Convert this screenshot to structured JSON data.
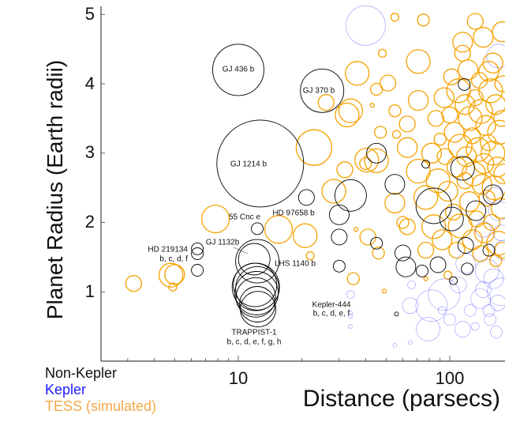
{
  "chart_data": {
    "type": "scatter",
    "xlabel": "Distance (parsecs)",
    "ylabel": "Planet Radius (Earth radii)",
    "xscale": "log",
    "xlim": [
      2.24,
      182
    ],
    "ylim": [
      0,
      5
    ],
    "x_ticks": [
      "10",
      "100"
    ],
    "y_ticks": [
      "1",
      "2",
      "3",
      "4",
      "5"
    ],
    "grid": false,
    "legend_placement": "bottom-left",
    "marker": "open circle, size varies",
    "series": [
      {
        "name": "Non-Kepler",
        "color": "#000000",
        "points": [
          [
            10,
            4.2,
            13
          ],
          [
            24.9,
            3.9,
            11
          ],
          [
            12.7,
            2.85,
            22
          ],
          [
            12.3,
            1.91,
            3
          ],
          [
            21,
            2.36,
            4
          ],
          [
            6.4,
            1.62,
            3
          ],
          [
            6.4,
            1.55,
            3
          ],
          [
            6.4,
            1.31,
            3
          ],
          [
            11.9,
            1.47,
            8
          ],
          [
            12.3,
            1.44,
            11
          ],
          [
            12.0,
            1.1,
            11
          ],
          [
            12.1,
            1.07,
            12
          ],
          [
            12.3,
            1.05,
            11
          ],
          [
            12.2,
            0.98,
            11
          ],
          [
            12.1,
            0.92,
            10
          ],
          [
            12.3,
            0.82,
            9
          ],
          [
            12.4,
            0.75,
            9
          ],
          [
            34,
            2.39,
            8
          ],
          [
            30,
            2.11,
            5
          ],
          [
            30,
            1.79,
            4
          ],
          [
            30,
            1.37,
            3
          ],
          [
            45,
            3.0,
            5
          ],
          [
            55,
            2.55,
            5
          ],
          [
            45,
            1.7,
            3
          ],
          [
            60,
            1.56,
            4
          ],
          [
            62,
            1.36,
            5
          ],
          [
            74,
            1.3,
            3
          ],
          [
            88,
            1.39,
            4
          ],
          [
            84,
            2.24,
            9
          ],
          [
            102,
            2.05,
            6
          ],
          [
            133,
            2.17,
            5
          ],
          [
            119,
            1.67,
            4
          ],
          [
            121,
            1.33,
            3
          ],
          [
            104,
            1.16,
            2
          ],
          [
            153,
            1.6,
            3
          ],
          [
            117,
            3.99,
            3
          ],
          [
            77,
            2.84,
            2
          ],
          [
            56,
            0.68,
            1
          ],
          [
            115,
            2.78,
            6
          ],
          [
            160,
            2.4,
            5
          ]
        ]
      },
      {
        "name": "Kepler",
        "color": "#3333ee",
        "points": [
          [
            40,
            4.84,
            10
          ],
          [
            34,
            0.96,
            2
          ],
          [
            33.9,
            0.7,
            1
          ],
          [
            33.9,
            0.65,
            1
          ],
          [
            33.9,
            0.5,
            1
          ],
          [
            55,
            0.23,
            1
          ],
          [
            65,
            0.8,
            4
          ],
          [
            82,
            0.8,
            8
          ],
          [
            94,
            0.96,
            8
          ],
          [
            79,
            0.46,
            6
          ],
          [
            115,
            0.46,
            4
          ],
          [
            132,
            0.5,
            2
          ],
          [
            144,
            1.03,
            4
          ],
          [
            161,
            1.19,
            5
          ],
          [
            169,
            0.84,
            4
          ],
          [
            166,
            0.42,
            3
          ],
          [
            170,
            2.17,
            5
          ],
          [
            153,
            0.73,
            3
          ],
          [
            180,
            1.6,
            5
          ],
          [
            66,
            1.1,
            2
          ],
          [
            92,
            0.73,
            2
          ],
          [
            125,
            0.73,
            3
          ],
          [
            119,
            1.41,
            5
          ],
          [
            163,
            2.39,
            4
          ],
          [
            144,
            1.9,
            4
          ],
          [
            65,
            0.27,
            1
          ],
          [
            150,
            1.3,
            6
          ],
          [
            175,
            1.0,
            7
          ],
          [
            140,
            0.9,
            5
          ],
          [
            110,
            1.1,
            4
          ],
          [
            170,
            4.4,
            6
          ],
          [
            175,
            1.85,
            4
          ],
          [
            155,
            0.6,
            3
          ],
          [
            100,
            0.6,
            3
          ]
        ]
      },
      {
        "name": "TESS (simulated)",
        "color": "#f5a200",
        "points": [
          [
            3.2,
            1.12,
            4
          ],
          [
            5.0,
            1.25,
            5
          ],
          [
            4.9,
            1.07,
            2
          ],
          [
            7.8,
            2.05,
            7
          ],
          [
            4.8,
            1.24,
            6
          ],
          [
            15.5,
            1.9,
            7
          ],
          [
            20.7,
            1.81,
            6
          ],
          [
            21.9,
            1.52,
            2
          ],
          [
            22.8,
            3.08,
            9
          ],
          [
            26,
            3.73,
            4
          ],
          [
            32.7,
            3.55,
            6
          ],
          [
            36.5,
            4.15,
            6
          ],
          [
            31.9,
            2.76,
            4
          ],
          [
            28.3,
            2.45,
            6
          ],
          [
            40.5,
            2.9,
            6
          ],
          [
            35,
            1.19,
            3
          ],
          [
            75,
            4.92,
            3
          ],
          [
            55,
            4.96,
            2
          ],
          [
            71,
            4.32,
            6
          ],
          [
            48,
            4.44,
            2
          ],
          [
            51,
            4.01,
            4
          ],
          [
            45,
            3.92,
            3
          ],
          [
            43,
            3.69,
            1
          ],
          [
            34,
            3.61,
            6
          ],
          [
            55,
            3.61,
            3
          ],
          [
            47,
            3.3,
            3
          ],
          [
            56,
            3.27,
            2
          ],
          [
            45,
            2.89,
            6
          ],
          [
            40,
            2.85,
            3
          ],
          [
            55,
            2.28,
            5
          ],
          [
            41,
            1.79,
            4
          ],
          [
            46,
            1.56,
            3
          ],
          [
            49,
            1.01,
            1
          ],
          [
            36,
            1.9,
            1
          ],
          [
            63,
            3.42,
            4
          ],
          [
            63,
            3.08,
            5
          ],
          [
            71,
            2.74,
            6
          ],
          [
            71,
            3.76,
            5
          ],
          [
            63,
            1.94,
            4
          ],
          [
            77,
            2.36,
            6
          ],
          [
            84,
            1.94,
            6
          ],
          [
            77,
            1.6,
            4
          ],
          [
            98,
            1.24,
            2
          ],
          [
            77,
            1.19,
            1
          ],
          [
            132,
            4.9,
            4
          ],
          [
            115,
            4.6,
            5
          ],
          [
            144,
            4.67,
            5
          ],
          [
            177,
            4.75,
            5
          ],
          [
            115,
            4.44,
            4
          ],
          [
            153,
            4.18,
            5
          ],
          [
            110,
            3.9,
            6
          ],
          [
            118,
            3.7,
            5
          ],
          [
            125,
            3.5,
            6
          ],
          [
            132,
            3.8,
            4
          ],
          [
            140,
            3.6,
            6
          ],
          [
            148,
            3.4,
            5
          ],
          [
            156,
            3.9,
            6
          ],
          [
            165,
            3.7,
            5
          ],
          [
            172,
            3.3,
            6
          ],
          [
            105,
            3.3,
            5
          ],
          [
            112,
            3.1,
            6
          ],
          [
            120,
            2.95,
            5
          ],
          [
            128,
            3.25,
            4
          ],
          [
            136,
            3.05,
            6
          ],
          [
            145,
            2.85,
            5
          ],
          [
            152,
            3.15,
            4
          ],
          [
            160,
            3.0,
            6
          ],
          [
            168,
            2.8,
            5
          ],
          [
            176,
            3.5,
            4
          ],
          [
            100,
            3.55,
            4
          ],
          [
            108,
            2.8,
            5
          ],
          [
            118,
            2.6,
            4
          ],
          [
            130,
            2.7,
            6
          ],
          [
            142,
            2.55,
            5
          ],
          [
            150,
            2.35,
            4
          ],
          [
            162,
            2.5,
            6
          ],
          [
            175,
            2.2,
            5
          ],
          [
            95,
            2.95,
            4
          ],
          [
            90,
            3.2,
            3
          ],
          [
            98,
            2.45,
            5
          ],
          [
            104,
            2.15,
            4
          ],
          [
            112,
            1.95,
            6
          ],
          [
            124,
            2.3,
            5
          ],
          [
            134,
            2.05,
            4
          ],
          [
            146,
            1.85,
            5
          ],
          [
            158,
            2.0,
            4
          ],
          [
            170,
            1.7,
            6
          ],
          [
            92,
            1.75,
            5
          ],
          [
            108,
            1.6,
            4
          ],
          [
            128,
            1.75,
            5
          ],
          [
            140,
            1.55,
            4
          ],
          [
            165,
            1.45,
            3
          ],
          [
            88,
            2.6,
            6
          ],
          [
            82,
            3.0,
            5
          ],
          [
            86,
            3.5,
            4
          ],
          [
            94,
            3.8,
            5
          ],
          [
            102,
            4.1,
            4
          ],
          [
            122,
            4.2,
            5
          ],
          [
            138,
            4.05,
            4
          ],
          [
            160,
            4.3,
            5
          ],
          [
            178,
            4.0,
            4
          ],
          [
            180,
            2.7,
            5
          ],
          [
            178,
            1.6,
            4
          ],
          [
            60,
            2.0,
            3
          ]
        ]
      }
    ],
    "annotations": [
      "GJ 436 b",
      "GJ 370 b",
      "GJ 1214 b",
      "55 Cnc e",
      "HD 97658 b",
      "HD 219134",
      "b, c, d, f",
      "GJ 1132b",
      "LHS 1140 b",
      "Kepler-444",
      "b, c, d, e, f",
      "TRAPPIST-1",
      "b, c, d, e, f, g, h"
    ],
    "legend": [
      "Non-Kepler",
      "Kepler",
      "TESS (simulated)"
    ]
  },
  "colors": {
    "non_kepler": "#000000",
    "kepler": "#1a1aff",
    "tess": "#f5a200",
    "tess_legend": "#f5a84a"
  }
}
